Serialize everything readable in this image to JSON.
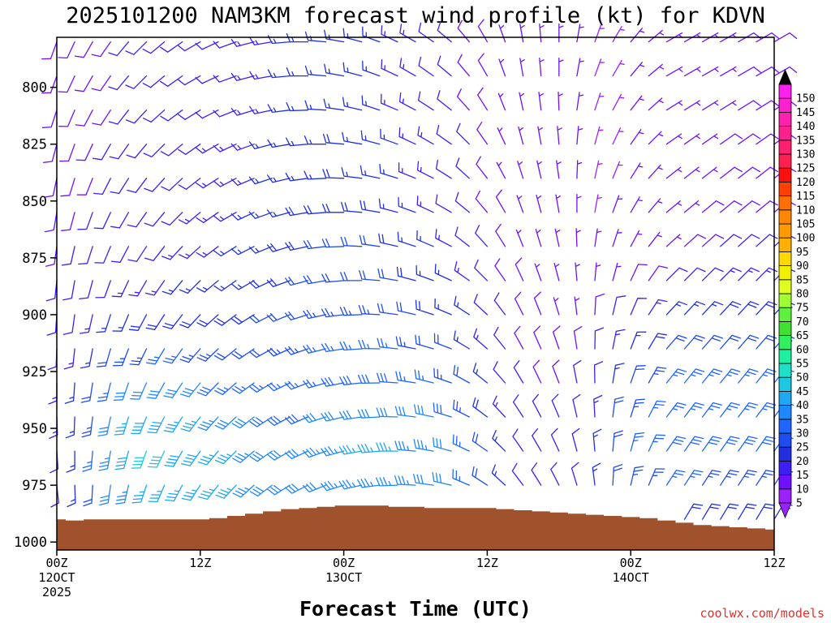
{
  "chart_data": {
    "type": "wind-barb time-height section",
    "title": "2025101200 NAM3KM forecast wind profile (kt) for KDVN",
    "xlabel": "Forecast Time (UTC)",
    "ylabel": "",
    "credit": "coolwx.com/models",
    "y_axis": {
      "reversed": true,
      "ylim": [
        1000,
        780
      ],
      "ticks": [
        "800",
        "825",
        "850",
        "875",
        "900",
        "925",
        "950",
        "975",
        "1000"
      ],
      "units": "hPa"
    },
    "x_axis": {
      "xlim": [
        0,
        60
      ],
      "units": "forecast hour",
      "ticks": [
        {
          "hour": 0,
          "line1": "00Z",
          "line2": "12OCT",
          "line3": "2025"
        },
        {
          "hour": 12,
          "line1": "12Z",
          "line2": "",
          "line3": ""
        },
        {
          "hour": 24,
          "line1": "00Z",
          "line2": "13OCT",
          "line3": ""
        },
        {
          "hour": 36,
          "line1": "12Z",
          "line2": "",
          "line3": ""
        },
        {
          "hour": 48,
          "line1": "00Z",
          "line2": "14OCT",
          "line3": ""
        },
        {
          "hour": 60,
          "line1": "12Z",
          "line2": "",
          "line3": ""
        }
      ]
    },
    "colorbar": {
      "labels": [
        "5",
        "10",
        "15",
        "20",
        "25",
        "30",
        "35",
        "40",
        "45",
        "50",
        "55",
        "60",
        "65",
        "70",
        "75",
        "80",
        "85",
        "90",
        "95",
        "100",
        "105",
        "110",
        "115",
        "120",
        "125",
        "130",
        "135",
        "140",
        "145",
        "150"
      ],
      "colors": [
        "#9b22ff",
        "#7010ff",
        "#3d1ff5",
        "#2030e0",
        "#1e4cf0",
        "#1e66ff",
        "#1e88ff",
        "#1ea8f0",
        "#1ec8e0",
        "#1ee0c8",
        "#1ef0a0",
        "#30f060",
        "#40e030",
        "#60f040",
        "#a0ff30",
        "#e0ff20",
        "#f0f000",
        "#ffd800",
        "#ffb000",
        "#ff9a00",
        "#ff8800",
        "#ff7000",
        "#ff4000",
        "#ff1010",
        "#ff2050",
        "#ff2070",
        "#ff2090",
        "#ff20b0",
        "#ff20d0",
        "#ff20f0"
      ]
    },
    "times": [
      0,
      1.5,
      3,
      4.5,
      6,
      7.5,
      9,
      10.5,
      12,
      13.5,
      15,
      16.5,
      18,
      19.5,
      21,
      22.5,
      24,
      25.5,
      27,
      28.5,
      30,
      31.5,
      33,
      34.5,
      36,
      37.5,
      39,
      40.5,
      42,
      43.5,
      45,
      46.5,
      48,
      49.5,
      51,
      52.5,
      54,
      55.5,
      57,
      58.5,
      60
    ],
    "levels": [
      780,
      795,
      810,
      825,
      840,
      855,
      870,
      885,
      900,
      915,
      930,
      945,
      960,
      975,
      990
    ],
    "surface_pressure": [
      990,
      990.5,
      990,
      990,
      990,
      990,
      990,
      990,
      990,
      989.5,
      988.5,
      987.5,
      986.5,
      985.5,
      985,
      984.5,
      984,
      984,
      984,
      984.5,
      984.5,
      985,
      985,
      985,
      985,
      985.5,
      986,
      986.5,
      987,
      987.5,
      988,
      988.5,
      989,
      989.5,
      990.5,
      991.5,
      992.5,
      993,
      993.5,
      994,
      994.5
    ],
    "wind_speed_kt": [
      [
        8,
        8,
        9,
        9,
        10,
        10,
        10,
        11,
        11,
        12,
        12,
        13,
        14,
        15,
        15,
        16,
        16,
        16,
        15,
        14,
        14,
        12,
        11,
        9,
        8,
        7,
        6,
        6,
        5,
        5,
        4,
        4,
        5,
        5,
        6,
        6,
        7,
        7,
        8,
        8,
        8
      ],
      [
        8,
        8,
        9,
        9,
        10,
        10,
        10,
        11,
        11,
        12,
        12,
        13,
        14,
        15,
        15,
        16,
        16,
        16,
        15,
        14,
        14,
        12,
        11,
        9,
        8,
        7,
        6,
        6,
        5,
        5,
        4,
        4,
        5,
        5,
        6,
        6,
        7,
        7,
        8,
        8,
        8
      ],
      [
        8,
        8,
        9,
        9,
        10,
        10,
        10,
        11,
        11,
        12,
        12,
        13,
        14,
        15,
        15,
        16,
        16,
        16,
        15,
        14,
        14,
        12,
        11,
        9,
        8,
        7,
        6,
        6,
        5,
        5,
        4,
        4,
        5,
        5,
        6,
        6,
        7,
        7,
        8,
        8,
        8
      ],
      [
        8,
        9,
        9,
        10,
        10,
        11,
        11,
        12,
        12,
        13,
        13,
        14,
        15,
        16,
        17,
        17,
        18,
        17,
        16,
        15,
        14,
        13,
        11,
        10,
        8,
        7,
        6,
        6,
        5,
        5,
        4,
        4,
        5,
        5,
        6,
        6,
        7,
        8,
        8,
        8,
        8
      ],
      [
        8,
        9,
        9,
        10,
        10,
        11,
        11,
        12,
        12,
        13,
        13,
        14,
        15,
        16,
        17,
        17,
        18,
        17,
        16,
        15,
        14,
        13,
        11,
        10,
        8,
        7,
        6,
        6,
        5,
        5,
        4,
        4,
        5,
        5,
        6,
        6,
        7,
        8,
        8,
        8,
        8
      ],
      [
        9,
        9,
        10,
        10,
        11,
        11,
        12,
        12,
        13,
        13,
        14,
        15,
        16,
        17,
        18,
        19,
        19,
        19,
        18,
        17,
        16,
        14,
        12,
        11,
        9,
        8,
        7,
        6,
        5,
        5,
        4,
        5,
        5,
        6,
        6,
        7,
        8,
        9,
        9,
        9,
        9
      ],
      [
        9,
        10,
        10,
        11,
        11,
        12,
        12,
        13,
        13,
        14,
        15,
        16,
        17,
        18,
        19,
        20,
        21,
        20,
        20,
        18,
        17,
        15,
        13,
        12,
        10,
        8,
        7,
        6,
        5,
        5,
        5,
        5,
        6,
        6,
        7,
        8,
        9,
        10,
        10,
        10,
        10
      ],
      [
        10,
        11,
        11,
        12,
        13,
        14,
        14,
        15,
        15,
        16,
        16,
        17,
        18,
        19,
        20,
        21,
        22,
        22,
        21,
        20,
        19,
        17,
        15,
        13,
        11,
        9,
        8,
        7,
        6,
        6,
        6,
        7,
        8,
        9,
        10,
        11,
        12,
        13,
        13,
        13,
        13
      ],
      [
        11,
        12,
        13,
        15,
        17,
        18,
        19,
        19,
        19,
        19,
        19,
        19,
        20,
        21,
        22,
        23,
        24,
        24,
        23,
        22,
        21,
        19,
        17,
        15,
        12,
        10,
        9,
        8,
        7,
        7,
        8,
        10,
        12,
        14,
        15,
        16,
        17,
        18,
        18,
        18,
        18
      ],
      [
        12,
        14,
        17,
        20,
        23,
        24,
        25,
        25,
        24,
        23,
        22,
        22,
        22,
        23,
        24,
        25,
        26,
        26,
        26,
        25,
        24,
        22,
        20,
        17,
        14,
        11,
        9,
        8,
        8,
        8,
        10,
        14,
        17,
        19,
        20,
        21,
        21,
        22,
        22,
        22,
        22
      ],
      [
        13,
        16,
        21,
        26,
        30,
        32,
        32,
        32,
        31,
        29,
        27,
        25,
        25,
        25,
        26,
        27,
        28,
        29,
        29,
        28,
        27,
        26,
        24,
        20,
        16,
        12,
        10,
        9,
        9,
        10,
        12,
        17,
        21,
        23,
        25,
        25,
        25,
        25,
        25,
        25,
        25
      ],
      [
        13,
        17,
        24,
        31,
        36,
        38,
        38,
        37,
        36,
        34,
        32,
        30,
        28,
        28,
        29,
        30,
        31,
        32,
        32,
        32,
        31,
        30,
        28,
        24,
        18,
        14,
        11,
        10,
        10,
        11,
        14,
        20,
        24,
        26,
        27,
        27,
        27,
        27,
        27,
        27,
        27
      ],
      [
        12,
        17,
        25,
        33,
        38,
        40,
        40,
        39,
        38,
        37,
        36,
        34,
        32,
        31,
        32,
        33,
        34,
        35,
        35,
        35,
        34,
        33,
        31,
        27,
        20,
        15,
        12,
        11,
        11,
        12,
        15,
        21,
        25,
        27,
        28,
        28,
        28,
        28,
        28,
        28,
        28
      ],
      [
        10,
        15,
        22,
        30,
        34,
        36,
        36,
        36,
        36,
        36,
        35,
        34,
        32,
        31,
        31,
        32,
        33,
        34,
        34,
        34,
        33,
        32,
        30,
        26,
        20,
        15,
        12,
        11,
        11,
        12,
        15,
        20,
        23,
        24,
        25,
        25,
        24,
        24,
        24,
        24,
        24
      ],
      [
        8,
        10,
        14,
        18,
        20,
        22,
        22,
        22,
        22,
        22,
        22,
        22,
        22,
        22,
        22,
        22,
        22,
        22,
        22,
        22,
        22,
        22,
        20,
        18,
        15,
        12,
        10,
        9,
        9,
        10,
        12,
        15,
        17,
        18,
        18,
        18,
        18,
        18,
        18,
        18,
        18
      ]
    ],
    "wind_dir_deg": [
      [
        200,
        205,
        210,
        215,
        220,
        225,
        230,
        235,
        240,
        245,
        250,
        255,
        260,
        265,
        270,
        275,
        280,
        285,
        290,
        295,
        300,
        305,
        310,
        320,
        330,
        340,
        350,
        355,
        0,
        10,
        20,
        30,
        40,
        50,
        60,
        60,
        60,
        60,
        60,
        60,
        60
      ],
      [
        200,
        205,
        210,
        215,
        220,
        225,
        230,
        235,
        240,
        245,
        250,
        255,
        260,
        265,
        270,
        275,
        280,
        285,
        290,
        295,
        300,
        305,
        310,
        320,
        330,
        340,
        350,
        355,
        0,
        10,
        20,
        30,
        40,
        50,
        60,
        60,
        60,
        60,
        60,
        60,
        60
      ],
      [
        198,
        203,
        208,
        213,
        218,
        223,
        228,
        233,
        238,
        243,
        248,
        253,
        258,
        263,
        268,
        273,
        278,
        283,
        288,
        293,
        298,
        303,
        308,
        318,
        328,
        338,
        348,
        353,
        358,
        8,
        18,
        28,
        38,
        48,
        58,
        58,
        58,
        58,
        58,
        58,
        58
      ],
      [
        195,
        200,
        205,
        210,
        215,
        220,
        225,
        230,
        235,
        240,
        245,
        250,
        255,
        260,
        265,
        270,
        275,
        280,
        285,
        290,
        295,
        300,
        305,
        315,
        325,
        335,
        345,
        350,
        355,
        5,
        15,
        25,
        35,
        45,
        55,
        55,
        55,
        55,
        55,
        55,
        55
      ],
      [
        192,
        197,
        202,
        207,
        212,
        217,
        222,
        227,
        232,
        237,
        242,
        247,
        252,
        257,
        262,
        267,
        272,
        277,
        282,
        287,
        292,
        297,
        302,
        312,
        322,
        332,
        342,
        347,
        352,
        2,
        12,
        22,
        32,
        42,
        52,
        52,
        52,
        52,
        52,
        52,
        52
      ],
      [
        190,
        195,
        200,
        205,
        210,
        215,
        220,
        225,
        230,
        235,
        240,
        245,
        250,
        255,
        260,
        265,
        270,
        275,
        280,
        285,
        290,
        295,
        300,
        310,
        320,
        330,
        340,
        345,
        350,
        0,
        10,
        20,
        30,
        40,
        50,
        50,
        50,
        50,
        50,
        50,
        50
      ],
      [
        188,
        193,
        198,
        203,
        208,
        213,
        218,
        223,
        228,
        233,
        238,
        243,
        248,
        253,
        258,
        263,
        268,
        273,
        278,
        283,
        288,
        293,
        298,
        308,
        318,
        328,
        338,
        343,
        348,
        358,
        8,
        18,
        28,
        38,
        48,
        48,
        48,
        48,
        48,
        48,
        48
      ],
      [
        186,
        190,
        195,
        200,
        205,
        210,
        215,
        220,
        225,
        230,
        235,
        240,
        245,
        250,
        255,
        260,
        265,
        270,
        275,
        280,
        285,
        290,
        295,
        305,
        315,
        325,
        335,
        340,
        345,
        355,
        5,
        15,
        25,
        35,
        45,
        45,
        45,
        45,
        45,
        45,
        45
      ],
      [
        184,
        188,
        193,
        198,
        203,
        208,
        213,
        218,
        223,
        228,
        233,
        238,
        243,
        248,
        253,
        258,
        263,
        268,
        273,
        278,
        283,
        288,
        293,
        303,
        313,
        323,
        333,
        338,
        343,
        353,
        3,
        13,
        23,
        33,
        43,
        43,
        43,
        43,
        43,
        43,
        43
      ],
      [
        182,
        186,
        191,
        196,
        201,
        206,
        211,
        216,
        221,
        226,
        231,
        236,
        241,
        246,
        251,
        256,
        261,
        266,
        271,
        276,
        281,
        286,
        291,
        301,
        311,
        321,
        331,
        336,
        341,
        351,
        1,
        11,
        21,
        31,
        41,
        41,
        41,
        41,
        41,
        41,
        41
      ],
      [
        180,
        184,
        189,
        194,
        199,
        204,
        209,
        214,
        219,
        224,
        229,
        234,
        239,
        244,
        249,
        254,
        259,
        264,
        269,
        274,
        279,
        284,
        289,
        299,
        309,
        319,
        329,
        334,
        339,
        349,
        359,
        9,
        19,
        29,
        39,
        39,
        39,
        39,
        39,
        39,
        39
      ],
      [
        178,
        182,
        187,
        192,
        197,
        202,
        207,
        212,
        217,
        222,
        227,
        232,
        237,
        242,
        247,
        252,
        257,
        262,
        267,
        272,
        277,
        282,
        287,
        297,
        307,
        317,
        327,
        332,
        337,
        347,
        357,
        7,
        17,
        27,
        37,
        37,
        37,
        37,
        37,
        37,
        37
      ],
      [
        176,
        180,
        185,
        190,
        195,
        200,
        205,
        210,
        215,
        220,
        225,
        230,
        235,
        240,
        245,
        250,
        255,
        260,
        265,
        270,
        275,
        280,
        285,
        295,
        305,
        315,
        325,
        330,
        335,
        345,
        355,
        5,
        15,
        25,
        35,
        35,
        35,
        35,
        35,
        35,
        35
      ],
      [
        174,
        178,
        183,
        188,
        193,
        198,
        203,
        208,
        213,
        218,
        223,
        228,
        233,
        238,
        243,
        248,
        253,
        258,
        263,
        268,
        273,
        278,
        283,
        293,
        303,
        313,
        323,
        328,
        333,
        343,
        353,
        3,
        13,
        23,
        33,
        33,
        33,
        33,
        33,
        33,
        33
      ],
      [
        172,
        176,
        181,
        186,
        191,
        196,
        201,
        206,
        211,
        216,
        221,
        226,
        231,
        236,
        241,
        246,
        251,
        256,
        261,
        266,
        271,
        276,
        281,
        291,
        301,
        311,
        321,
        326,
        331,
        341,
        351,
        1,
        11,
        21,
        31,
        31,
        31,
        31,
        31,
        31,
        31
      ]
    ]
  }
}
